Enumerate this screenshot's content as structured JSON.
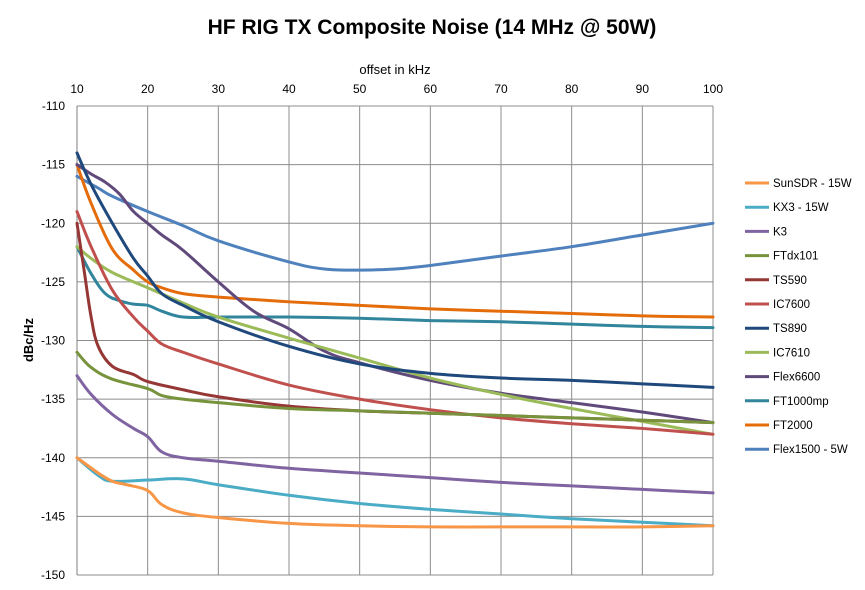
{
  "chart_data": {
    "type": "line",
    "title": "HF RIG TX Composite Noise (14 MHz @ 50W)",
    "xlabel": "offset in kHz",
    "ylabel": "dBc/Hz",
    "xlim": [
      10,
      100
    ],
    "ylim": [
      -150,
      -110
    ],
    "x_ticks": [
      "10",
      "20",
      "30",
      "40",
      "50",
      "60",
      "70",
      "80",
      "90",
      "100"
    ],
    "y_ticks": [
      "-110",
      "-115",
      "-120",
      "-125",
      "-130",
      "-135",
      "-140",
      "-145",
      "-150"
    ],
    "x_axis_position": "top",
    "grid": true,
    "legend_position": "right",
    "series": [
      {
        "name": "SunSDR - 15W",
        "color": "#F79646",
        "points": [
          [
            10,
            -140
          ],
          [
            13,
            -141.3
          ],
          [
            15,
            -142
          ],
          [
            17,
            -142.3
          ],
          [
            20,
            -142.8
          ],
          [
            22,
            -144
          ],
          [
            25,
            -144.7
          ],
          [
            30,
            -145.1
          ],
          [
            40,
            -145.6
          ],
          [
            50,
            -145.8
          ],
          [
            60,
            -145.9
          ],
          [
            70,
            -145.9
          ],
          [
            80,
            -145.9
          ],
          [
            90,
            -145.9
          ],
          [
            100,
            -145.8
          ]
        ]
      },
      {
        "name": "KX3 - 15W",
        "color": "#4BACC6",
        "points": [
          [
            10,
            -140
          ],
          [
            13,
            -141.5
          ],
          [
            15,
            -142
          ],
          [
            20,
            -141.9
          ],
          [
            25,
            -141.8
          ],
          [
            30,
            -142.3
          ],
          [
            40,
            -143.2
          ],
          [
            50,
            -143.9
          ],
          [
            60,
            -144.4
          ],
          [
            70,
            -144.8
          ],
          [
            80,
            -145.2
          ],
          [
            90,
            -145.5
          ],
          [
            100,
            -145.8
          ]
        ]
      },
      {
        "name": "K3",
        "color": "#8064A2",
        "points": [
          [
            10,
            -133
          ],
          [
            12,
            -134.6
          ],
          [
            15,
            -136.3
          ],
          [
            18,
            -137.5
          ],
          [
            20,
            -138.2
          ],
          [
            22,
            -139.5
          ],
          [
            25,
            -140
          ],
          [
            30,
            -140.3
          ],
          [
            40,
            -140.9
          ],
          [
            50,
            -141.3
          ],
          [
            60,
            -141.7
          ],
          [
            70,
            -142.1
          ],
          [
            80,
            -142.4
          ],
          [
            90,
            -142.7
          ],
          [
            100,
            -143
          ]
        ]
      },
      {
        "name": "FTdx101",
        "color": "#77933C",
        "points": [
          [
            10,
            -131
          ],
          [
            12,
            -132.3
          ],
          [
            15,
            -133.3
          ],
          [
            20,
            -134.1
          ],
          [
            22,
            -134.7
          ],
          [
            25,
            -135
          ],
          [
            30,
            -135.3
          ],
          [
            40,
            -135.8
          ],
          [
            50,
            -136
          ],
          [
            60,
            -136.2
          ],
          [
            70,
            -136.4
          ],
          [
            80,
            -136.6
          ],
          [
            90,
            -136.8
          ],
          [
            100,
            -137
          ]
        ]
      },
      {
        "name": "TS590",
        "color": "#953735",
        "points": [
          [
            10,
            -120
          ],
          [
            11,
            -124
          ],
          [
            12,
            -128
          ],
          [
            13,
            -130.5
          ],
          [
            15,
            -132.2
          ],
          [
            18,
            -132.9
          ],
          [
            20,
            -133.5
          ],
          [
            25,
            -134.2
          ],
          [
            30,
            -134.8
          ],
          [
            40,
            -135.6
          ],
          [
            50,
            -136
          ],
          [
            60,
            -136.2
          ],
          [
            70,
            -136.4
          ],
          [
            80,
            -136.6
          ],
          [
            90,
            -136.8
          ],
          [
            100,
            -137
          ]
        ]
      },
      {
        "name": "IC7600",
        "color": "#C0504D",
        "points": [
          [
            10,
            -119
          ],
          [
            12,
            -122
          ],
          [
            15,
            -125.7
          ],
          [
            18,
            -128
          ],
          [
            20,
            -129.2
          ],
          [
            22,
            -130.3
          ],
          [
            25,
            -131
          ],
          [
            30,
            -132
          ],
          [
            40,
            -133.8
          ],
          [
            50,
            -135
          ],
          [
            60,
            -135.9
          ],
          [
            70,
            -136.6
          ],
          [
            80,
            -137.1
          ],
          [
            90,
            -137.5
          ],
          [
            100,
            -138
          ]
        ]
      },
      {
        "name": "TS890",
        "color": "#1F497D",
        "points": [
          [
            10,
            -114
          ],
          [
            12,
            -116.7
          ],
          [
            15,
            -120
          ],
          [
            18,
            -123
          ],
          [
            20,
            -124.5
          ],
          [
            22,
            -126
          ],
          [
            25,
            -127
          ],
          [
            30,
            -128.4
          ],
          [
            40,
            -130.5
          ],
          [
            50,
            -132
          ],
          [
            60,
            -132.8
          ],
          [
            70,
            -133.2
          ],
          [
            80,
            -133.4
          ],
          [
            90,
            -133.7
          ],
          [
            100,
            -134
          ]
        ]
      },
      {
        "name": "IC7610",
        "color": "#9BBB59",
        "points": [
          [
            10,
            -122
          ],
          [
            12,
            -123
          ],
          [
            15,
            -124.2
          ],
          [
            20,
            -125.5
          ],
          [
            25,
            -126.8
          ],
          [
            30,
            -128
          ],
          [
            40,
            -129.8
          ],
          [
            50,
            -131.5
          ],
          [
            60,
            -133.2
          ],
          [
            70,
            -134.6
          ],
          [
            80,
            -135.8
          ],
          [
            90,
            -136.9
          ],
          [
            100,
            -138
          ]
        ]
      },
      {
        "name": "Flex6600",
        "color": "#604A7B",
        "points": [
          [
            10,
            -115
          ],
          [
            12,
            -115.8
          ],
          [
            14,
            -116.5
          ],
          [
            16,
            -117.5
          ],
          [
            18,
            -119
          ],
          [
            20,
            -120
          ],
          [
            22,
            -121
          ],
          [
            25,
            -122.3
          ],
          [
            30,
            -125
          ],
          [
            35,
            -127.5
          ],
          [
            40,
            -129
          ],
          [
            45,
            -130.9
          ],
          [
            50,
            -131.9
          ],
          [
            60,
            -133.4
          ],
          [
            70,
            -134.5
          ],
          [
            80,
            -135.3
          ],
          [
            90,
            -136.1
          ],
          [
            100,
            -137
          ]
        ]
      },
      {
        "name": "FT1000mp",
        "color": "#31859C",
        "points": [
          [
            10,
            -122
          ],
          [
            12,
            -124.3
          ],
          [
            14,
            -126
          ],
          [
            16,
            -126.6
          ],
          [
            18,
            -126.9
          ],
          [
            20,
            -127
          ],
          [
            22,
            -127.5
          ],
          [
            25,
            -128
          ],
          [
            30,
            -128
          ],
          [
            40,
            -128
          ],
          [
            50,
            -128.1
          ],
          [
            60,
            -128.3
          ],
          [
            70,
            -128.4
          ],
          [
            80,
            -128.6
          ],
          [
            90,
            -128.8
          ],
          [
            100,
            -128.9
          ]
        ]
      },
      {
        "name": "FT2000",
        "color": "#E46C0A",
        "points": [
          [
            10,
            -115
          ],
          [
            12,
            -118.3
          ],
          [
            15,
            -122.2
          ],
          [
            18,
            -124
          ],
          [
            20,
            -125
          ],
          [
            22,
            -125.5
          ],
          [
            25,
            -126
          ],
          [
            30,
            -126.3
          ],
          [
            40,
            -126.7
          ],
          [
            50,
            -127
          ],
          [
            60,
            -127.3
          ],
          [
            70,
            -127.5
          ],
          [
            80,
            -127.7
          ],
          [
            90,
            -127.9
          ],
          [
            100,
            -128
          ]
        ]
      },
      {
        "name": "Flex1500 - 5W",
        "color": "#4F81BD",
        "points": [
          [
            10,
            -116
          ],
          [
            13,
            -117
          ],
          [
            15,
            -117.7
          ],
          [
            20,
            -119
          ],
          [
            25,
            -120.2
          ],
          [
            30,
            -121.5
          ],
          [
            40,
            -123.3
          ],
          [
            45,
            -123.9
          ],
          [
            50,
            -124
          ],
          [
            55,
            -123.9
          ],
          [
            60,
            -123.6
          ],
          [
            70,
            -122.8
          ],
          [
            80,
            -122
          ],
          [
            90,
            -121
          ],
          [
            100,
            -120
          ]
        ]
      }
    ]
  }
}
